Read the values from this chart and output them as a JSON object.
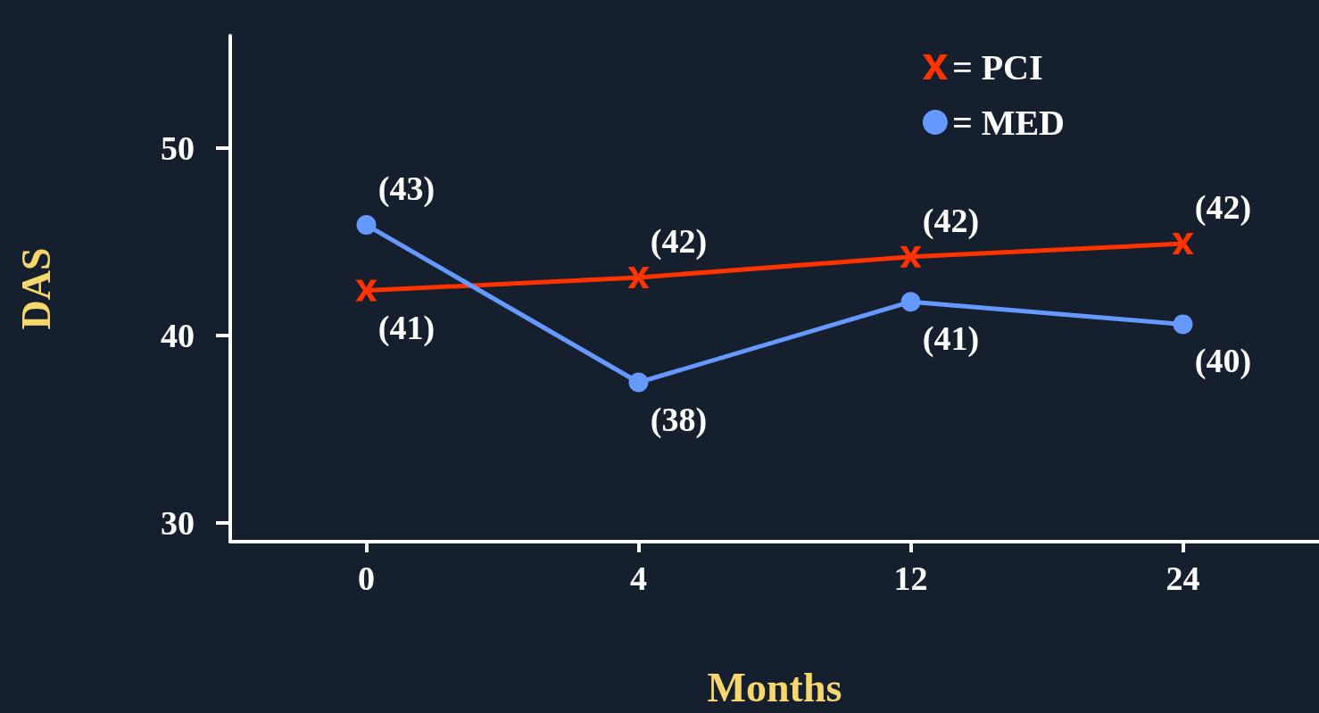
{
  "chart_data": {
    "type": "line",
    "xlabel": "Months",
    "ylabel": "DAS",
    "categories": [
      "0",
      "4",
      "12",
      "24"
    ],
    "series": [
      {
        "name": "= PCI",
        "color": "#ff3300",
        "marker": "cross",
        "values": [
          42.4,
          43.1,
          44.2,
          44.9
        ]
      },
      {
        "name": "= MED",
        "color": "#6699ff",
        "marker": "circle",
        "values": [
          45.9,
          37.5,
          41.8,
          40.6
        ]
      }
    ],
    "annotations": [
      {
        "text": "(41)",
        "x": "0",
        "y": 42.4
      },
      {
        "text": "(42)",
        "x": "4",
        "y": 43.1
      },
      {
        "text": "(42)",
        "x": "12",
        "y": 44.2
      },
      {
        "text": "(42)",
        "x": "24",
        "y": 44.9
      },
      {
        "text": "(43)",
        "x": "0",
        "y": 45.9
      },
      {
        "text": "(38)",
        "x": "4",
        "y": 37.5
      },
      {
        "text": "(41)",
        "x": "12",
        "y": 41.8
      },
      {
        "text": "(40)",
        "x": "24",
        "y": 40.6
      }
    ],
    "ylim": [
      29,
      56
    ],
    "yticks": [
      30,
      40,
      50
    ],
    "grid": false,
    "legend": "top right"
  }
}
